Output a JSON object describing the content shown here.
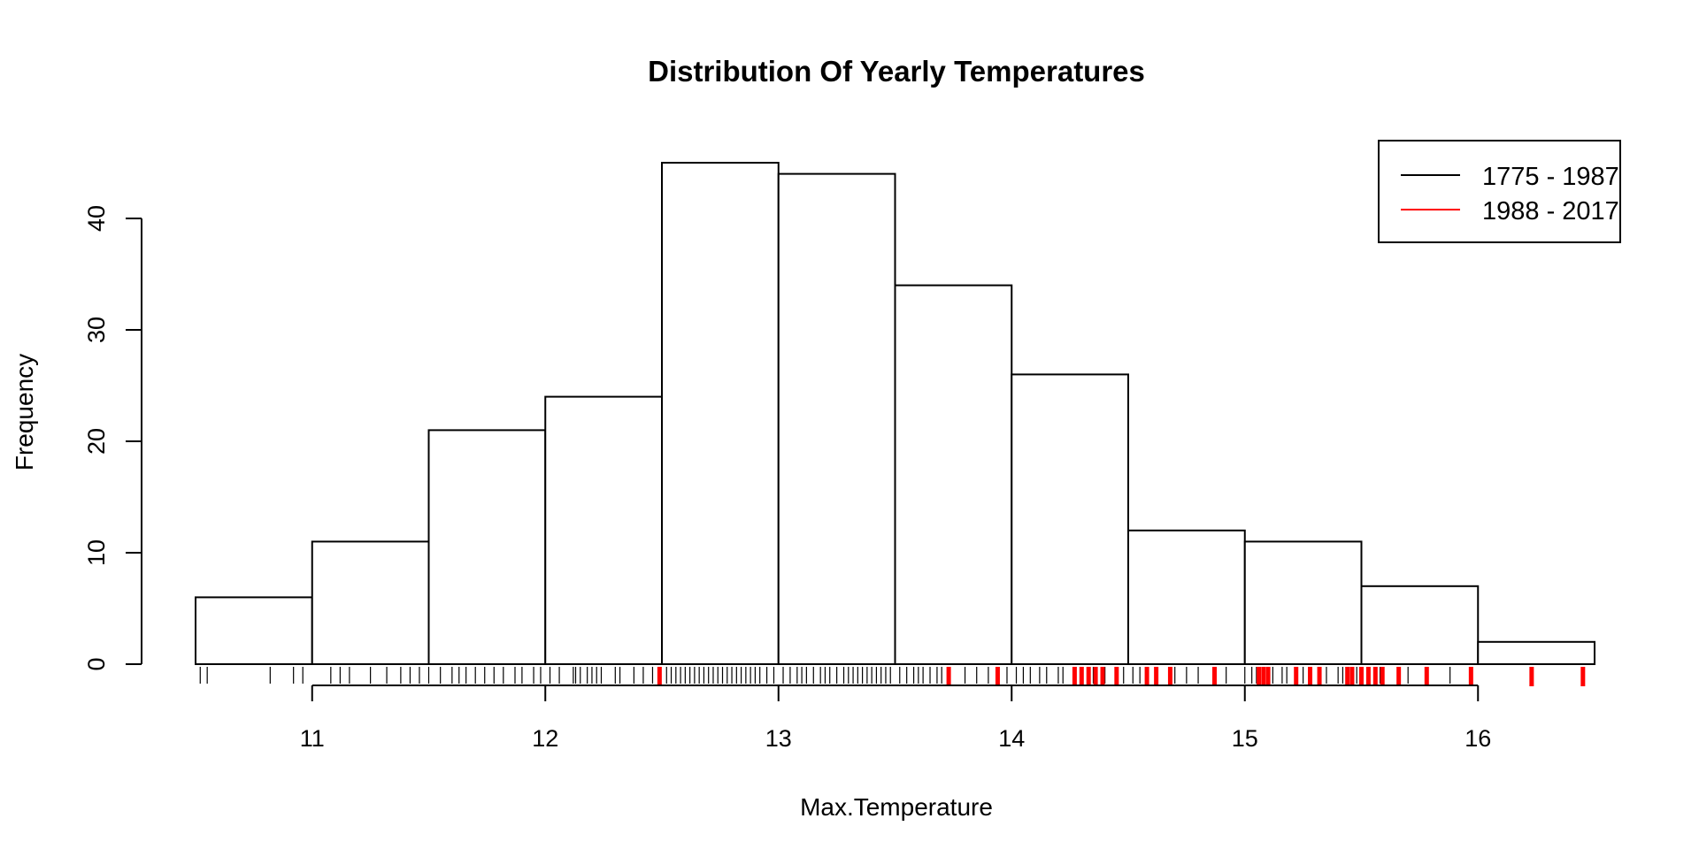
{
  "chart_data": {
    "type": "bar",
    "title": "Distribution Of Yearly Temperatures",
    "xlabel": "Max.Temperature",
    "ylabel": "Frequency",
    "xlim": [
      10.5,
      16.5
    ],
    "ylim": [
      0,
      45
    ],
    "x_ticks": [
      "11",
      "12",
      "13",
      "14",
      "15",
      "16"
    ],
    "y_ticks": [
      "0",
      "10",
      "20",
      "30",
      "40"
    ],
    "bins": [
      {
        "x0": 10.5,
        "x1": 11.0,
        "count": 6
      },
      {
        "x0": 11.0,
        "x1": 11.5,
        "count": 11
      },
      {
        "x0": 11.5,
        "x1": 12.0,
        "count": 21
      },
      {
        "x0": 12.0,
        "x1": 12.5,
        "count": 24
      },
      {
        "x0": 12.5,
        "x1": 13.0,
        "count": 45
      },
      {
        "x0": 13.0,
        "x1": 13.5,
        "count": 44
      },
      {
        "x0": 13.5,
        "x1": 14.0,
        "count": 34
      },
      {
        "x0": 14.0,
        "x1": 14.5,
        "count": 26
      },
      {
        "x0": 14.5,
        "x1": 15.0,
        "count": 12
      },
      {
        "x0": 15.0,
        "x1": 15.5,
        "count": 11
      },
      {
        "x0": 15.5,
        "x1": 16.0,
        "count": 7
      },
      {
        "x0": 16.0,
        "x1": 16.5,
        "count": 2
      }
    ],
    "rug": [
      {
        "name": "1775 - 1987",
        "color": "#000000",
        "values": [
          10.52,
          10.55,
          10.82,
          10.92,
          10.96,
          11.08,
          11.12,
          11.16,
          11.25,
          11.32,
          11.38,
          11.42,
          11.46,
          11.5,
          11.55,
          11.6,
          11.63,
          11.66,
          11.7,
          11.74,
          11.78,
          11.82,
          11.87,
          11.9,
          11.95,
          11.98,
          12.02,
          12.06,
          12.12,
          12.13,
          12.15,
          12.18,
          12.2,
          12.22,
          12.24,
          12.3,
          12.32,
          12.38,
          12.42,
          12.46,
          12.52,
          12.54,
          12.56,
          12.58,
          12.6,
          12.62,
          12.64,
          12.66,
          12.68,
          12.7,
          12.72,
          12.74,
          12.76,
          12.78,
          12.8,
          12.82,
          12.84,
          12.86,
          12.88,
          12.9,
          12.92,
          12.95,
          12.98,
          13.02,
          13.05,
          13.08,
          13.1,
          13.12,
          13.15,
          13.18,
          13.2,
          13.22,
          13.25,
          13.28,
          13.3,
          13.32,
          13.34,
          13.36,
          13.38,
          13.4,
          13.42,
          13.44,
          13.46,
          13.48,
          13.52,
          13.55,
          13.58,
          13.6,
          13.62,
          13.65,
          13.68,
          13.7,
          13.8,
          13.85,
          13.9,
          13.98,
          14.02,
          14.05,
          14.08,
          14.12,
          14.15,
          14.2,
          14.22,
          14.35,
          14.4,
          14.48,
          14.52,
          14.55,
          14.62,
          14.7,
          14.75,
          14.8,
          14.92,
          15.0,
          15.03,
          15.05,
          15.12,
          15.16,
          15.18,
          15.25,
          15.35,
          15.4,
          15.42,
          15.48,
          15.58,
          15.7,
          15.88
        ]
      },
      {
        "name": "1988 - 2017",
        "color": "#ff0000",
        "values": [
          12.49,
          13.73,
          13.94,
          14.27,
          14.3,
          14.33,
          14.36,
          14.39,
          14.45,
          14.58,
          14.62,
          14.68,
          14.87,
          15.06,
          15.08,
          15.1,
          15.22,
          15.28,
          15.32,
          15.44,
          15.46,
          15.5,
          15.53,
          15.56,
          15.59,
          15.66,
          15.78,
          15.97,
          16.23,
          16.45
        ]
      }
    ],
    "legend": {
      "position": "top-right",
      "entries": [
        {
          "label": "1775 - 1987",
          "color": "#000000"
        },
        {
          "label": "1988 - 2017",
          "color": "#ff0000"
        }
      ]
    },
    "grid": false
  }
}
